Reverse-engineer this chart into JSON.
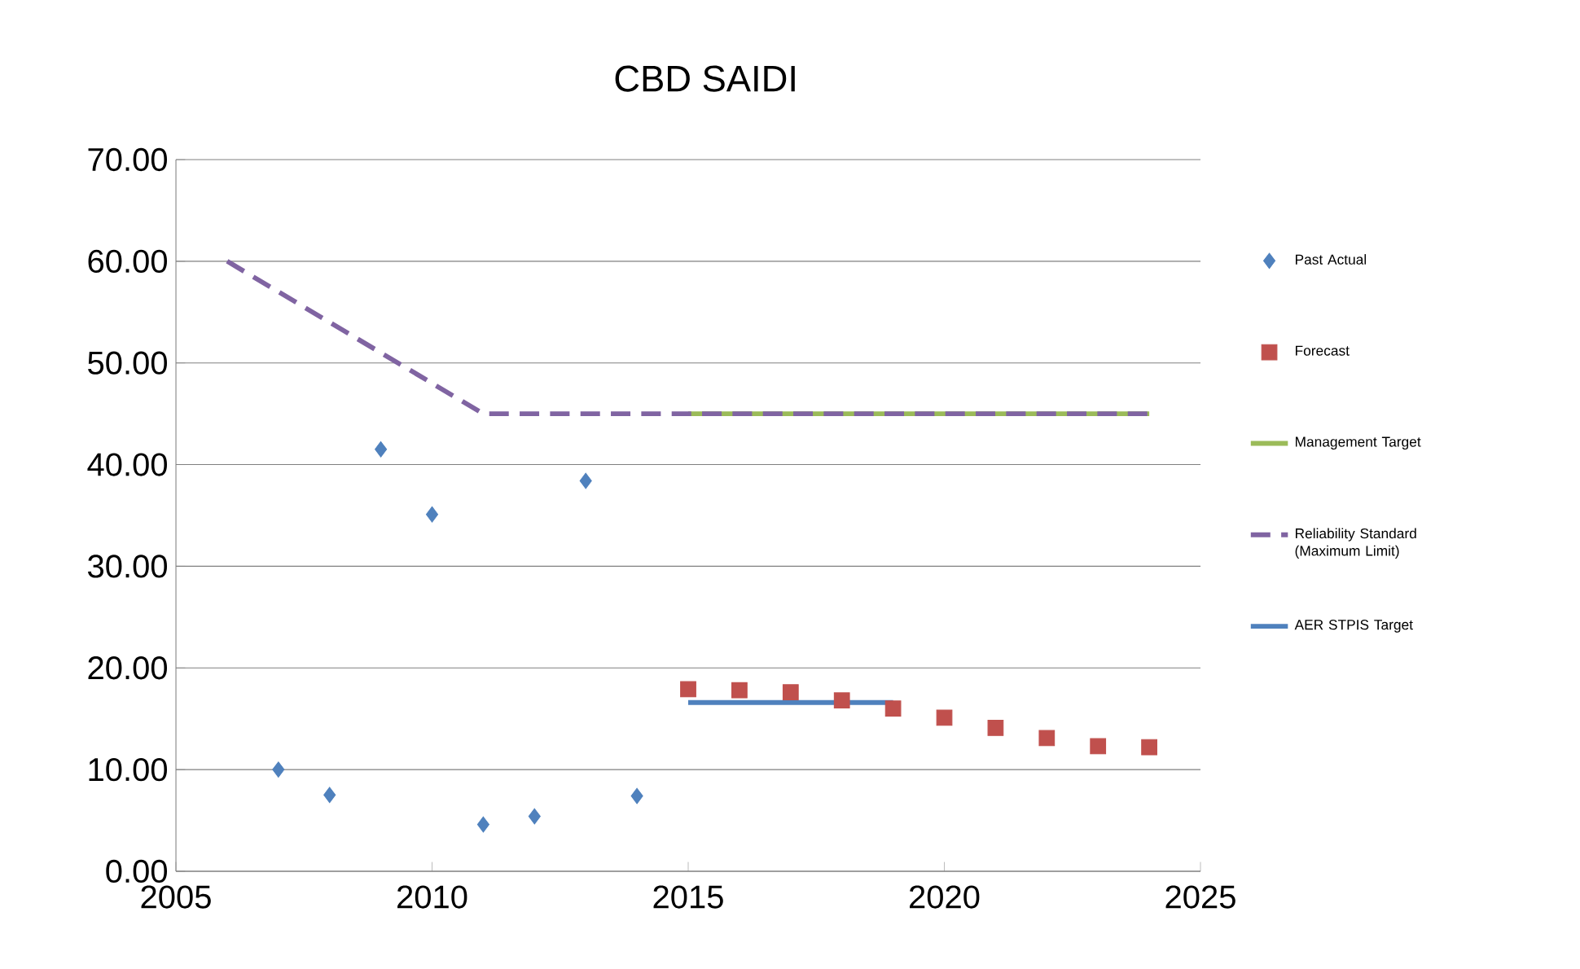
{
  "chart_data": {
    "type": "scatter",
    "title": "CBD SAIDI",
    "xlim": [
      2005,
      2025
    ],
    "xticks": [
      2005,
      2010,
      2015,
      2020,
      2025
    ],
    "ylim": [
      0,
      70
    ],
    "yticks": [
      {
        "value": 0,
        "label": "0.00"
      },
      {
        "value": 10,
        "label": "10.00"
      },
      {
        "value": 20,
        "label": "20.00"
      },
      {
        "value": 30,
        "label": "30.00"
      },
      {
        "value": 40,
        "label": "40.00"
      },
      {
        "value": 50,
        "label": "50.00"
      },
      {
        "value": 60,
        "label": "60.00"
      },
      {
        "value": 70,
        "label": "70.00"
      }
    ],
    "grid": "y",
    "legend": "right",
    "series": [
      {
        "name": "Past Actual",
        "marker": "diamond",
        "color": "#4f81bd",
        "x": [
          2007,
          2008,
          2009,
          2010,
          2011,
          2012,
          2013,
          2014
        ],
        "values": [
          10.0,
          7.5,
          41.5,
          35.1,
          4.6,
          5.4,
          38.4,
          7.4
        ]
      },
      {
        "name": "Forecast",
        "marker": "square",
        "color": "#c0504d",
        "x": [
          2015,
          2016,
          2017,
          2018,
          2019,
          2020,
          2021,
          2022,
          2023,
          2024
        ],
        "values": [
          17.9,
          17.8,
          17.6,
          16.8,
          16.0,
          15.1,
          14.1,
          13.1,
          12.3,
          12.2
        ]
      },
      {
        "name": "Management Target",
        "type": "line",
        "line_style": "solid",
        "color": "#9bbb59",
        "x": [
          2015,
          2024
        ],
        "values": [
          45,
          45
        ]
      },
      {
        "name": "Reliability Standard (Maximum Limit)",
        "type": "line",
        "line_style": "dashed",
        "color": "#8064a2",
        "x": [
          2006,
          2011,
          2024
        ],
        "values": [
          60,
          45,
          45
        ]
      },
      {
        "name": "AER STPIS Target",
        "type": "line",
        "line_style": "solid",
        "color": "#4f81bd",
        "x": [
          2015,
          2019
        ],
        "values": [
          16.6,
          16.6
        ]
      }
    ]
  }
}
